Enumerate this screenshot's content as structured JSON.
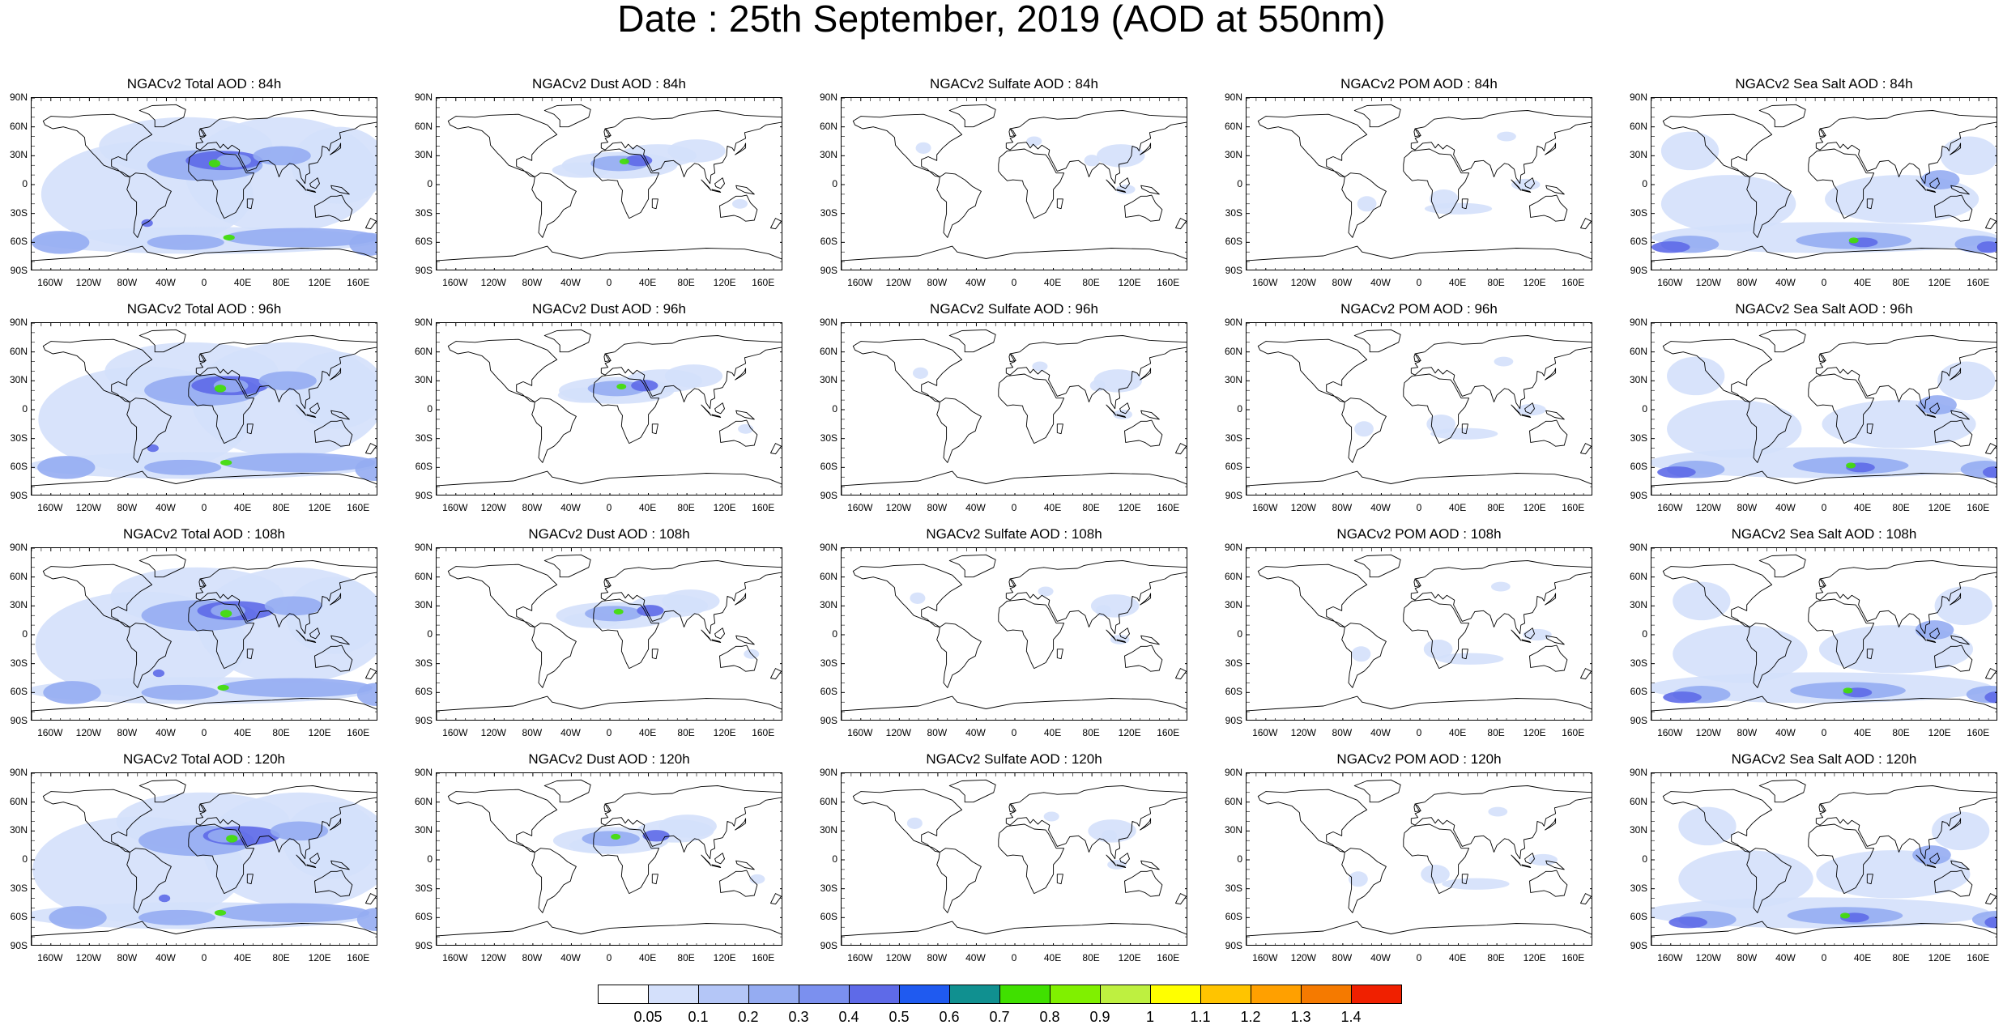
{
  "title": "Date : 25th September, 2019 (AOD at 550nm)",
  "columns": [
    {
      "id": "total",
      "label": "Total"
    },
    {
      "id": "dust",
      "label": "Dust"
    },
    {
      "id": "sulfate",
      "label": "Sulfate"
    },
    {
      "id": "pom",
      "label": "POM"
    },
    {
      "id": "seasalt",
      "label": "Sea Salt"
    }
  ],
  "rows": [
    "84h",
    "96h",
    "108h",
    "120h"
  ],
  "panels": [
    [
      "NGACv2 Total AOD : 84h",
      "NGACv2 Dust AOD : 84h",
      "NGACv2 Sulfate AOD : 84h",
      "NGACv2 POM AOD : 84h",
      "NGACv2 Sea Salt AOD : 84h"
    ],
    [
      "NGACv2 Total AOD : 96h",
      "NGACv2 Dust AOD : 96h",
      "NGACv2 Sulfate AOD : 96h",
      "NGACv2 POM AOD : 96h",
      "NGACv2 Sea Salt AOD : 96h"
    ],
    [
      "NGACv2 Total AOD : 108h",
      "NGACv2 Dust AOD : 108h",
      "NGACv2 Sulfate AOD : 108h",
      "NGACv2 POM AOD : 108h",
      "NGACv2 Sea Salt AOD : 108h"
    ],
    [
      "NGACv2 Total AOD : 120h",
      "NGACv2 Dust AOD : 120h",
      "NGACv2 Sulfate AOD : 120h",
      "NGACv2 POM AOD : 120h",
      "NGACv2 Sea Salt  AOD : 120h"
    ]
  ],
  "lat_ticks": [
    "90N",
    "60N",
    "30N",
    "0",
    "30S",
    "60S",
    "90S"
  ],
  "lon_ticks": [
    "160W",
    "120W",
    "80W",
    "40W",
    "0",
    "40E",
    "80E",
    "120E",
    "160E"
  ],
  "colorbar": {
    "labels": [
      "0.05",
      "0.1",
      "0.2",
      "0.3",
      "0.4",
      "0.5",
      "0.6",
      "0.7",
      "0.8",
      "0.9",
      "1",
      "1.1",
      "1.2",
      "1.3",
      "1.4"
    ],
    "colors": [
      "#ffffff",
      "#d4e0fb",
      "#b4c6f7",
      "#95acf2",
      "#7b90ef",
      "#5e6ae8",
      "#1f5af0",
      "#109090",
      "#40e000",
      "#80f000",
      "#bef040",
      "#ffff00",
      "#ffc400",
      "#ffa000",
      "#f57a00",
      "#f02000"
    ]
  },
  "map_colors": {
    "land_outline": "#000000",
    "light_aod": "#d4e0fb",
    "mid_aod": "#95acf2",
    "high_aod": "#5e6ae8",
    "peak_aod": "#40e000",
    "hot_aod": "#ffff00"
  }
}
